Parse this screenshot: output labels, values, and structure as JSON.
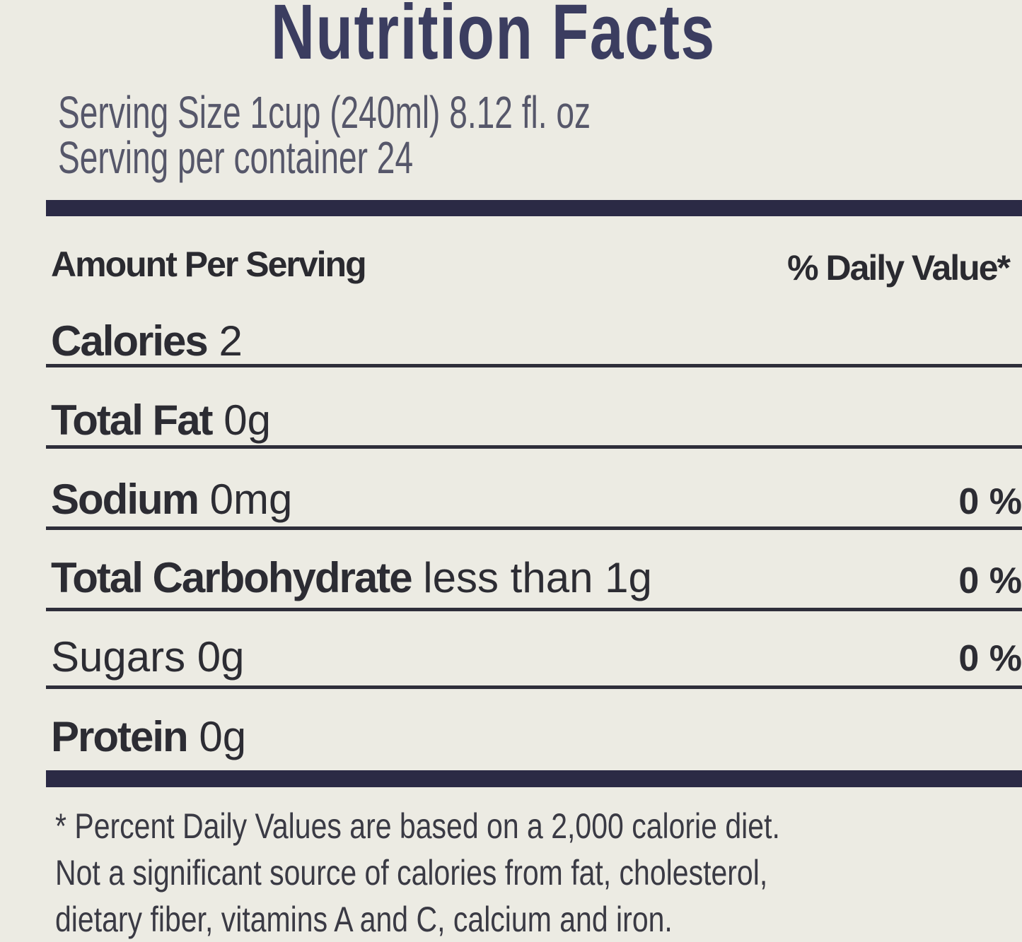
{
  "label": {
    "title": "Nutrition Facts",
    "serving_size": "Serving Size 1cup (240ml)  8.12 fl. oz",
    "servings_per_container": "Serving per container 24",
    "amount_header": "Amount Per Serving",
    "dv_header": "% Daily  Value*",
    "rows": [
      {
        "name": "Calories",
        "amount": "2",
        "dv": ""
      },
      {
        "name": "Total Fat",
        "amount": "0g",
        "dv": ""
      },
      {
        "name": "Sodium",
        "amount": "0mg",
        "dv": "0 %"
      },
      {
        "name": "Total Carbohydrate",
        "amount": "less than 1g",
        "dv": "0 %"
      },
      {
        "name": "Sugars",
        "amount": "0g",
        "dv": "0 %"
      },
      {
        "name": "Protein",
        "amount": "0g",
        "dv": ""
      }
    ],
    "footnote": [
      "* Percent Daily Values are based on a 2,000 calorie diet.",
      "Not a significant source of calories from fat, cholesterol,",
      "dietary fiber, vitamins A and C, calcium and iron."
    ]
  },
  "colors": {
    "background": "#ecebe3",
    "title": "#3b3d60",
    "bars": "#2b2a45"
  }
}
